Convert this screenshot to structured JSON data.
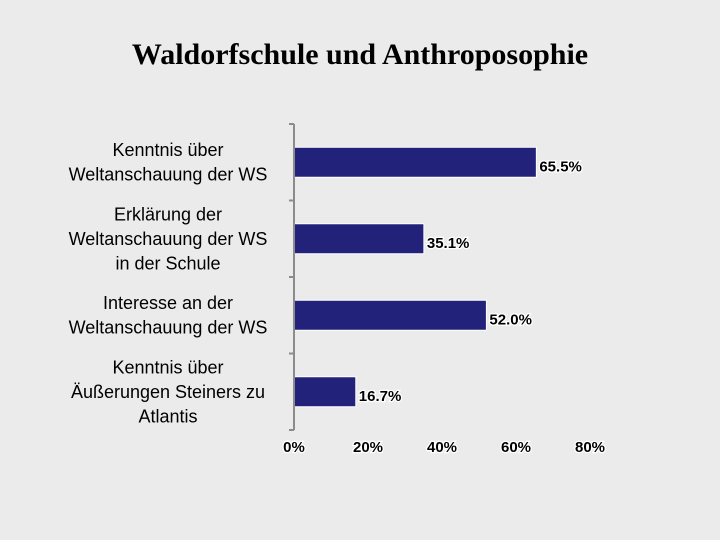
{
  "chart_data": {
    "type": "bar",
    "orientation": "horizontal",
    "title": "Waldorfschule und Anthroposophie",
    "categories": [
      [
        "Kenntnis über",
        "Weltanschauung der WS"
      ],
      [
        "Erklärung der",
        "Weltanschauung der WS",
        "in der Schule"
      ],
      [
        "Interesse an der",
        "Weltanschauung der WS"
      ],
      [
        "Kenntnis über",
        "Äußerungen Steiners zu",
        "Atlantis"
      ]
    ],
    "values": [
      65.5,
      35.1,
      52.0,
      16.7
    ],
    "value_labels": [
      "65.5%",
      "35.1%",
      "52.0%",
      "16.7%"
    ],
    "xlim": [
      0,
      80
    ],
    "xticks": [
      0,
      20,
      40,
      60,
      80
    ],
    "xtick_labels": [
      "0%",
      "20%",
      "40%",
      "60%",
      "80%"
    ],
    "grid": false,
    "legend": "none",
    "colors": {
      "bar_fill": "#22227a",
      "bar_edge": "#ffffff",
      "axis": "#8c8c8c",
      "background": "#ebebeb"
    }
  }
}
